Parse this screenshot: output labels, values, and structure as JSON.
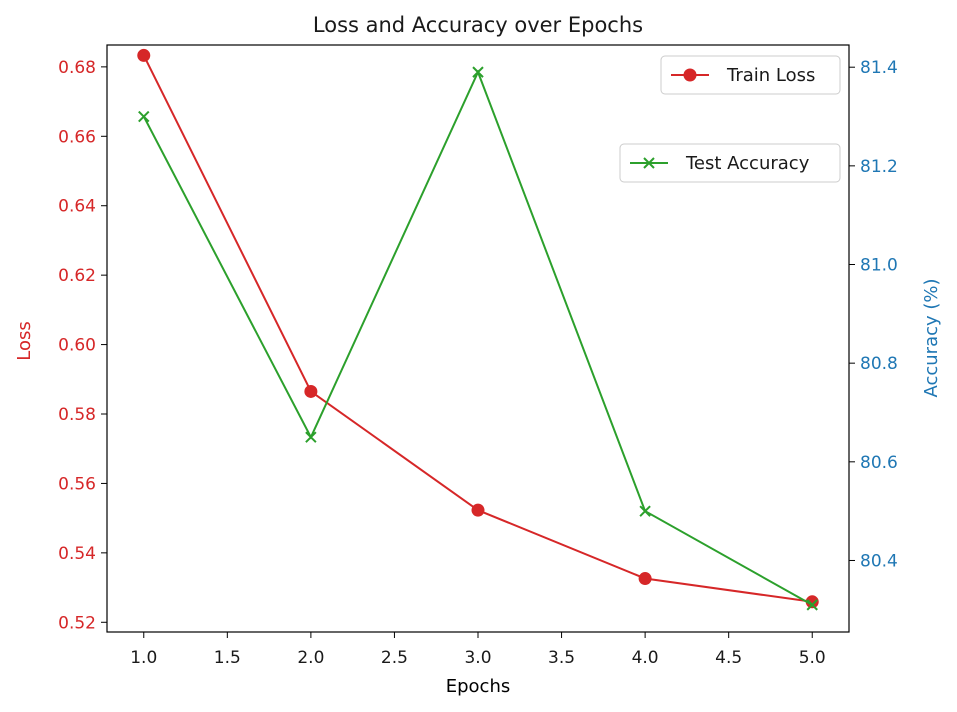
{
  "chart_data": {
    "type": "line",
    "title": "Loss and Accuracy over Epochs",
    "xlabel": "Epochs",
    "x": [
      1.0,
      2.0,
      3.0,
      4.0,
      5.0
    ],
    "xlim": [
      0.78,
      5.22
    ],
    "xticks": [
      "1.0",
      "1.5",
      "2.0",
      "2.5",
      "3.0",
      "3.5",
      "4.0",
      "4.5",
      "5.0"
    ],
    "y_left": {
      "label": "Loss",
      "color": "#d62728",
      "lim": [
        0.5172,
        0.6863
      ],
      "ticks": [
        "0.52",
        "0.54",
        "0.56",
        "0.58",
        "0.60",
        "0.62",
        "0.64",
        "0.66",
        "0.68"
      ]
    },
    "y_right": {
      "label": "Accuracy (%)",
      "color": "#1f77b4",
      "lim": [
        80.255,
        81.445
      ],
      "ticks": [
        "80.4",
        "80.6",
        "80.8",
        "81.0",
        "81.2",
        "81.4"
      ]
    },
    "series": [
      {
        "name": "Train Loss",
        "axis": "left",
        "color": "#d62728",
        "marker": "circle",
        "values": [
          0.6833,
          0.5865,
          0.5523,
          0.5326,
          0.5259
        ]
      },
      {
        "name": "Test Accuracy",
        "axis": "right",
        "color": "#2ca02c",
        "marker": "x",
        "values": [
          81.3,
          80.65,
          81.39,
          80.5,
          80.31
        ]
      }
    ],
    "legends": [
      {
        "entries": [
          "Train Loss"
        ],
        "placement": "top-right"
      },
      {
        "entries": [
          "Test Accuracy"
        ],
        "placement": "upper-right"
      }
    ],
    "grid": false
  }
}
